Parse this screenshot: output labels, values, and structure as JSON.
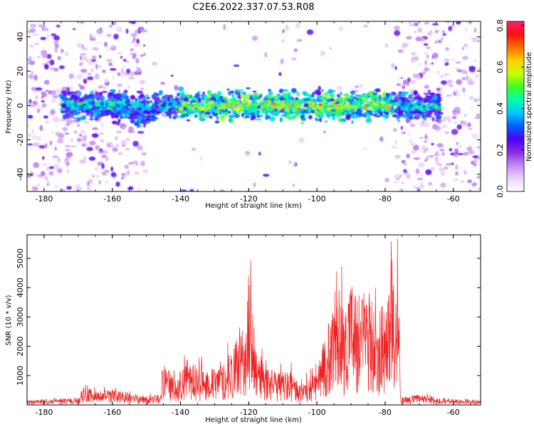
{
  "title": "C2E6.2022.337.07.53.R08",
  "colorbar": {
    "label": "Normalized spectral amplitude",
    "ticks": [
      "0.0",
      "0.2",
      "0.4",
      "0.6",
      "0.8"
    ],
    "range": [
      0.0,
      0.82
    ],
    "colormap": [
      "#ffffff",
      "#e9d3fb",
      "#c48af4",
      "#8a2be2",
      "#4b00ff",
      "#0060ff",
      "#00c8ff",
      "#00ffb0",
      "#40ff20",
      "#c8ff00",
      "#ffd000",
      "#ff7000",
      "#ff1010",
      "#ff2070"
    ]
  },
  "chart_data": [
    {
      "type": "heatmap",
      "title": "C2E6.2022.337.07.53.R08",
      "xlabel": "Height of straight line (km)",
      "ylabel": "Frequency (Hz)",
      "xlim": [
        -185,
        -52
      ],
      "ylim": [
        -50,
        49
      ],
      "xticks": [
        -180,
        -160,
        -140,
        -120,
        -100,
        -80,
        -60
      ],
      "yticks": [
        -40,
        -20,
        0,
        20,
        40
      ],
      "colorbar_label": "Normalized spectral amplitude",
      "features": {
        "signal_band_center_hz": 0,
        "signal_band_halfwidth_hz": 6,
        "band_extent_km": [
          -175,
          -64
        ],
        "noise_regions_km": [
          [
            -185,
            -150
          ],
          [
            -77,
            -52
          ]
        ],
        "peak_amplitude": 0.82,
        "peak_location_km": -99
      }
    },
    {
      "type": "line",
      "xlabel": "Height of straight line (km)",
      "ylabel": "SNR (10 * v/v)",
      "xlim": [
        -185,
        -52
      ],
      "ylim": [
        0,
        5800
      ],
      "xticks": [
        -180,
        -160,
        -140,
        -120,
        -100,
        -80,
        -60
      ],
      "yticks": [
        1000,
        2000,
        3000,
        4000,
        5000
      ],
      "line_color": "#ee2222",
      "x": [
        -185,
        -180,
        -175,
        -170,
        -168,
        -165,
        -160,
        -155,
        -150,
        -146,
        -145,
        -142,
        -140,
        -138,
        -135,
        -130,
        -127,
        -125,
        -123,
        -121,
        -120,
        -118,
        -116,
        -114,
        -112,
        -110,
        -108,
        -105,
        -102,
        -100,
        -97,
        -96,
        -94,
        -92,
        -90,
        -88,
        -86,
        -84,
        -82,
        -80,
        -79,
        -78,
        -77,
        -76,
        -75.5,
        -73,
        -70,
        -65,
        -60,
        -55,
        -52
      ],
      "y": [
        150,
        180,
        200,
        250,
        700,
        450,
        500,
        400,
        300,
        350,
        1500,
        900,
        1200,
        1500,
        1300,
        1200,
        1400,
        1900,
        2200,
        2600,
        4400,
        2100,
        1500,
        1200,
        1100,
        1100,
        1200,
        700,
        900,
        1200,
        2600,
        3000,
        4700,
        3000,
        4300,
        3300,
        3900,
        3600,
        3000,
        3700,
        3500,
        5750,
        2800,
        5350,
        250,
        300,
        350,
        250,
        200,
        180,
        160
      ]
    }
  ]
}
